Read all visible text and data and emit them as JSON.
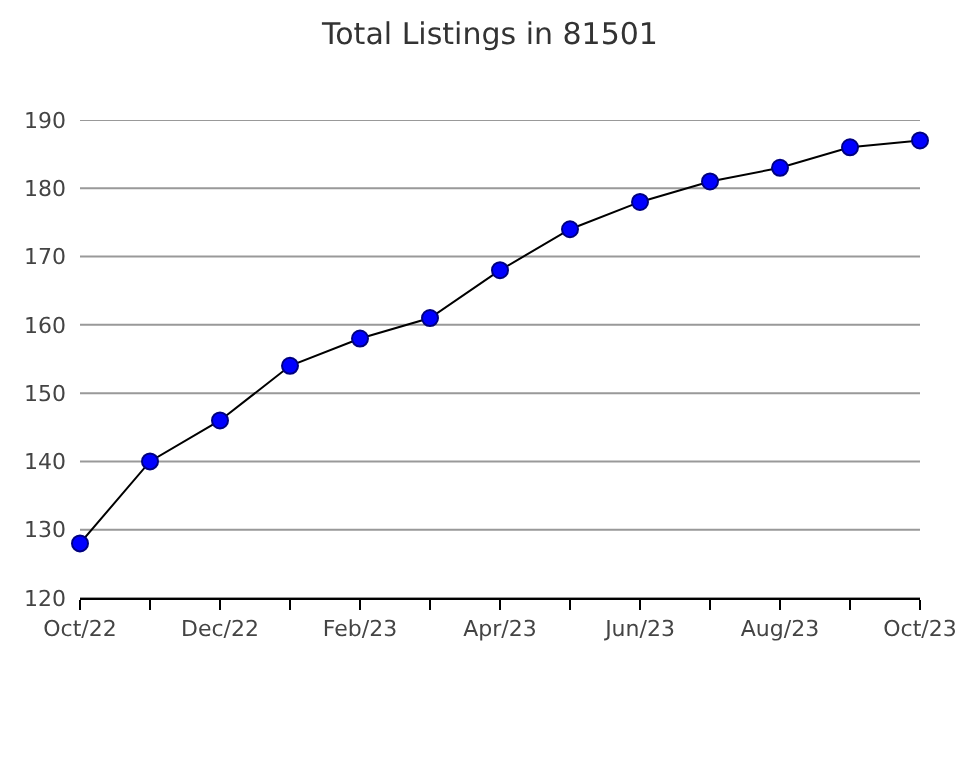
{
  "chart_data": {
    "type": "line",
    "title": "Total Listings in 81501",
    "categories": [
      "Oct/22",
      null,
      "Dec/22",
      null,
      "Feb/23",
      null,
      "Apr/23",
      null,
      "Jun/23",
      null,
      "Aug/23",
      null,
      "Oct/23"
    ],
    "series": [
      {
        "color": "#0000ff",
        "values": [
          128,
          140,
          146,
          154,
          158,
          161,
          168,
          174,
          178,
          181,
          183,
          186,
          187
        ]
      }
    ],
    "ylim": [
      120,
      190
    ],
    "yticks": [
      120,
      130,
      140,
      150,
      160,
      170,
      180,
      190
    ],
    "grid": "y",
    "marker": "circle",
    "line_style": "solid"
  }
}
